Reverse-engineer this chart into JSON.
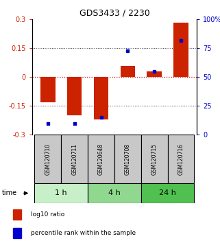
{
  "title": "GDS3433 / 2230",
  "samples": [
    "GSM120710",
    "GSM120711",
    "GSM120648",
    "GSM120708",
    "GSM120715",
    "GSM120716"
  ],
  "log10_ratio": [
    -0.13,
    -0.2,
    -0.22,
    0.06,
    0.03,
    0.285
  ],
  "percentile_rank": [
    10,
    10,
    15,
    73,
    55,
    82
  ],
  "groups": [
    {
      "label": "1 h",
      "indices": [
        0,
        1
      ],
      "color": "#c8f0c8"
    },
    {
      "label": "4 h",
      "indices": [
        2,
        3
      ],
      "color": "#90d890"
    },
    {
      "label": "24 h",
      "indices": [
        4,
        5
      ],
      "color": "#50c050"
    }
  ],
  "ylim_left": [
    -0.3,
    0.3
  ],
  "ylim_right": [
    0,
    100
  ],
  "yticks_left": [
    -0.3,
    -0.15,
    0.0,
    0.15,
    0.3
  ],
  "yticks_right": [
    0,
    25,
    50,
    75,
    100
  ],
  "bar_color_red": "#cc2200",
  "dot_color_blue": "#0000cc",
  "hline_red_color": "#cc0000",
  "gridline_color": "#333333",
  "time_label": "time",
  "legend_red_label": "log10 ratio",
  "legend_blue_label": "percentile rank within the sample",
  "bar_width": 0.55,
  "sample_box_color": "#c8c8c8",
  "figsize": [
    3.21,
    3.54
  ],
  "dpi": 100
}
